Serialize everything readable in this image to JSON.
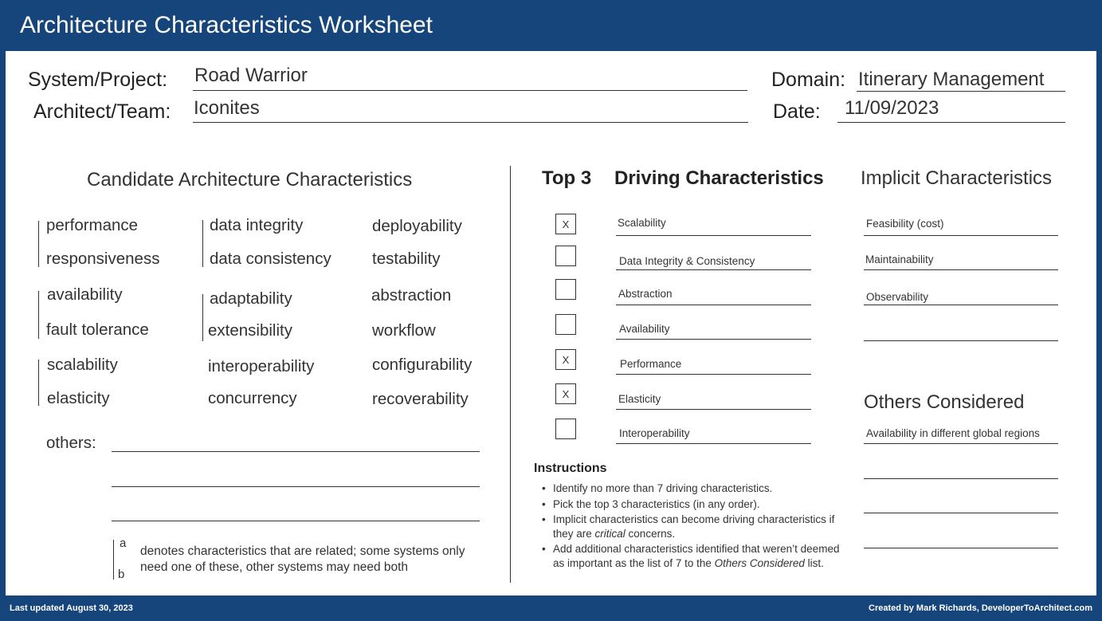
{
  "title": "Architecture Characteristics Worksheet",
  "header": {
    "system_label": "System/Project:",
    "system_value": "Road Warrior",
    "architect_label": "Architect/Team:",
    "architect_value": "Iconites",
    "domain_label": "Domain:",
    "domain_value": "Itinerary Management",
    "date_label": "Date:",
    "date_value": "11/09/2023"
  },
  "candidate": {
    "title": "Candidate Architecture Characteristics",
    "col1": [
      "performance",
      "responsiveness",
      "availability",
      "fault tolerance",
      "scalability",
      "elasticity"
    ],
    "col2": [
      "data integrity",
      "data consistency",
      "adaptability",
      "extensibility",
      "interoperability",
      "concurrency"
    ],
    "col3": [
      "deployability",
      "testability",
      "abstraction",
      "workflow",
      "configurability",
      "recoverability"
    ],
    "others_label": "others:",
    "note_a": "a",
    "note_b": "b",
    "note_text": "denotes characteristics that are related; some systems only need one of these, other systems may need both"
  },
  "driving": {
    "top3_label": "Top 3",
    "title": "Driving Characteristics",
    "items": [
      {
        "label": "Scalability",
        "mark": "X"
      },
      {
        "label": "Data Integrity & Consistency",
        "mark": ""
      },
      {
        "label": "Abstraction",
        "mark": ""
      },
      {
        "label": "Availability",
        "mark": ""
      },
      {
        "label": "Performance",
        "mark": "X"
      },
      {
        "label": "Elasticity",
        "mark": "X"
      },
      {
        "label": "Interoperability",
        "mark": ""
      }
    ]
  },
  "implicit": {
    "title": "Implicit Characteristics",
    "items": [
      "Feasibility (cost)",
      "Maintainability",
      "Observability",
      ""
    ]
  },
  "others_considered": {
    "title": "Others Considered",
    "items": [
      "Availability in different global regions",
      "",
      "",
      ""
    ]
  },
  "instructions": {
    "title": "Instructions",
    "item1": "Identify no more than 7 driving characteristics.",
    "item2": "Pick the top 3 characteristics (in any order).",
    "item3_a": "Implicit characteristics can become driving characteristics if they are ",
    "item3_em": "critical",
    "item3_b": " concerns.",
    "item4_a": "Add additional characteristics identified that weren’t deemed as important as the list of 7 to the ",
    "item4_em": "Others Considered",
    "item4_b": " list.",
    "bullet": "•"
  },
  "footer": {
    "left": "Last updated August 30, 2023",
    "right": "Created by Mark Richards, DeveloperToArchitect.com"
  },
  "colors": {
    "frame": "#15457a",
    "sheet": "#ffffff"
  }
}
